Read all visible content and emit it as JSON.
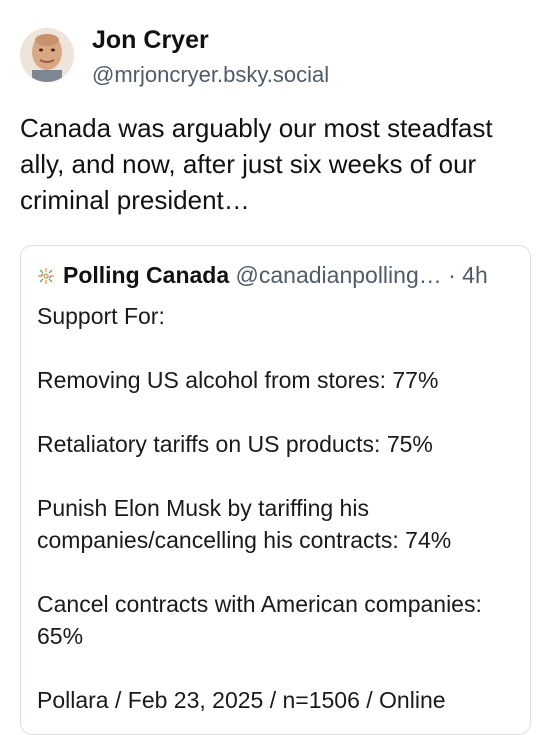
{
  "post": {
    "author_name": "Jon Cryer",
    "author_handle": "@mrjoncryer.bsky.social",
    "text": "Canada was arguably our most steadfast ally, and now, after just six weeks of our criminal president…"
  },
  "quote": {
    "name": "Polling Canada",
    "handle": "@canadianpolling…",
    "time": "· 4h",
    "heading": "Support For:",
    "items": [
      "Removing US alcohol from stores: 77%",
      "Retaliatory tariffs on US products: 75%",
      "Punish Elon Musk by tariffing his companies/cancelling his contracts: 74%",
      "Cancel contracts with American companies: 65%"
    ],
    "footer": "Pollara / Feb 23, 2025 / n=1506 / Online"
  },
  "icons": {
    "avatar": "avatar-photo",
    "quote_logo": "maple-leaf-icon"
  }
}
